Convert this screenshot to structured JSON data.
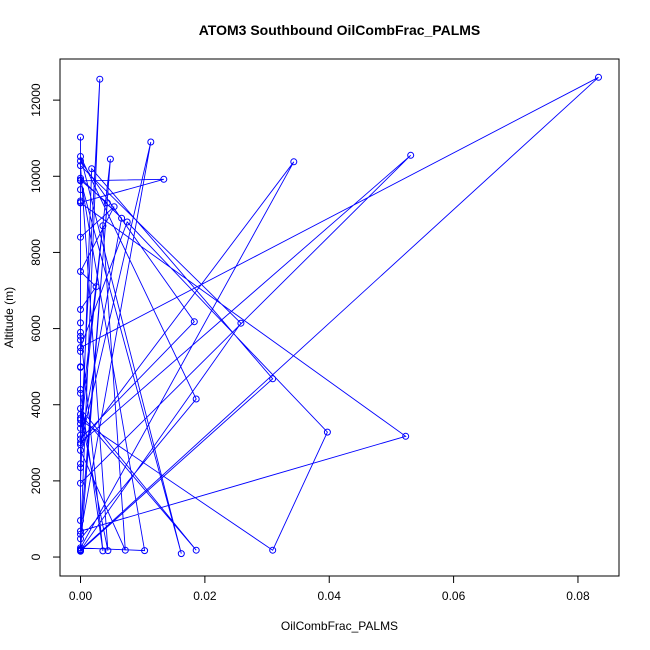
{
  "chart_data": {
    "type": "line",
    "title": "ATOM3 Southbound OilCombFrac_PALMS",
    "xlabel": "OilCombFrac_PALMS",
    "ylabel": "Altitude (m)",
    "xlim": [
      -0.0033,
      0.0866
    ],
    "ylim": [
      -498,
      13080
    ],
    "x_ticks": [
      {
        "value": 0,
        "label": "0.00"
      },
      {
        "value": 0.02,
        "label": "0.02"
      },
      {
        "value": 0.04,
        "label": "0.04"
      },
      {
        "value": 0.06,
        "label": "0.06"
      },
      {
        "value": 0.08,
        "label": "0.08"
      }
    ],
    "y_ticks": [
      {
        "value": 0,
        "label": "0"
      },
      {
        "value": 2000,
        "label": "2000"
      },
      {
        "value": 4000,
        "label": "4000"
      },
      {
        "value": 6000,
        "label": "6000"
      },
      {
        "value": 8000,
        "label": "8000"
      },
      {
        "value": 10000,
        "label": "10000"
      },
      {
        "value": 12000,
        "label": "12000"
      }
    ],
    "grid": false,
    "color": "#0000ff",
    "series": [
      {
        "points": [
          [
            0.0,
            150
          ],
          [
            0.0,
            10400
          ],
          [
            0.0183,
            6180
          ],
          [
            0.0,
            3100
          ],
          [
            0.0031,
            12550
          ],
          [
            0.0,
            480
          ],
          [
            0.0186,
            4150
          ],
          [
            0.0,
            10520
          ],
          [
            0.0162,
            90
          ],
          [
            0.0,
            9900
          ],
          [
            0.0043,
            9300
          ],
          [
            0.0,
            600
          ],
          [
            0.0113,
            10900
          ],
          [
            0.0,
            2950
          ],
          [
            0.0343,
            10380
          ],
          [
            0.0,
            240
          ],
          [
            0.0103,
            170
          ],
          [
            0.0,
            9950
          ],
          [
            0.0066,
            8900
          ],
          [
            0.0,
            3000
          ],
          [
            0.0531,
            10550
          ],
          [
            0.0,
            1940
          ],
          [
            0.0018,
            10200
          ],
          [
            0.0309,
            4680
          ],
          [
            0.0,
            160
          ],
          [
            0.0048,
            10450
          ],
          [
            0.0,
            3600
          ],
          [
            0.0309,
            180
          ],
          [
            0.0397,
            3280
          ],
          [
            0.0075,
            8800
          ],
          [
            0.0,
            5500
          ],
          [
            0.0833,
            12600
          ],
          [
            0.0,
            180
          ],
          [
            0.0,
            4300
          ],
          [
            0.0036,
            160
          ],
          [
            0.0,
            5900
          ],
          [
            0.0,
            9350
          ],
          [
            0.0,
            4400
          ],
          [
            0.0,
            9310
          ],
          [
            0.0134,
            9920
          ],
          [
            0.0,
            9880
          ],
          [
            0.0,
            11030
          ],
          [
            0.0,
            9650
          ],
          [
            0.0,
            8400
          ],
          [
            0.0054,
            9200
          ],
          [
            0.0,
            7500
          ],
          [
            0.0025,
            7100
          ],
          [
            0.0,
            6500
          ],
          [
            0.0,
            6150
          ],
          [
            0.0,
            5800
          ],
          [
            0.0,
            5700
          ],
          [
            0.0,
            5400
          ],
          [
            0.0,
            5000
          ],
          [
            0.0,
            3650
          ],
          [
            0.0,
            3500
          ],
          [
            0.0,
            2450
          ],
          [
            0.0,
            2350
          ],
          [
            0.0,
            960
          ],
          [
            0.0,
            200
          ],
          [
            0.0,
            180
          ],
          [
            0.0258,
            6140
          ],
          [
            0.0,
            10280
          ],
          [
            0.0044,
            170
          ],
          [
            0.0,
            3750
          ],
          [
            0.0186,
            180
          ],
          [
            0.0,
            3900
          ],
          [
            0.0,
            3200
          ],
          [
            0.0036,
            8700
          ],
          [
            0.0072,
            180
          ],
          [
            0.0,
            2800
          ],
          [
            0.0,
            3380
          ],
          [
            0.0,
            680
          ],
          [
            0.0523,
            3170
          ],
          [
            0.0,
            9300
          ],
          [
            0.0,
            4980
          ],
          [
            0.0,
            170
          ]
        ]
      }
    ]
  }
}
